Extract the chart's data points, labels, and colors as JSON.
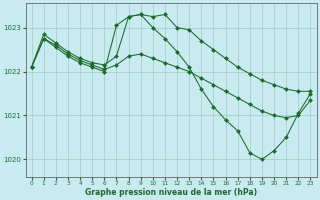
{
  "title": "Graphe pression niveau de la mer (hPa)",
  "background_color": "#c8eaf0",
  "grid_color": "#a0ccbb",
  "line_color": "#1a6b2a",
  "xlim": [
    -0.5,
    23.5
  ],
  "ylim": [
    1019.6,
    1023.55
  ],
  "yticks": [
    1020,
    1021,
    1022,
    1023
  ],
  "xticks": [
    0,
    1,
    2,
    3,
    4,
    5,
    6,
    7,
    8,
    9,
    10,
    11,
    12,
    13,
    14,
    15,
    16,
    17,
    18,
    19,
    20,
    21,
    22,
    23
  ],
  "series": [
    {
      "x": [
        0,
        1,
        2,
        3,
        4,
        5,
        6,
        7,
        8,
        9,
        10,
        11,
        12,
        13,
        14,
        15,
        16,
        17,
        18,
        19,
        20,
        21,
        22,
        23
      ],
      "y": [
        1022.1,
        1022.85,
        1022.65,
        1022.45,
        1022.3,
        1022.2,
        1022.15,
        1022.35,
        1023.25,
        1023.3,
        1023.25,
        1023.3,
        1023.0,
        1022.95,
        1022.7,
        1022.5,
        1022.3,
        1022.1,
        1021.95,
        1021.8,
        1021.7,
        1021.6,
        1021.55,
        1021.55
      ]
    },
    {
      "x": [
        0,
        1,
        2,
        3,
        4,
        5,
        6,
        7,
        8,
        9,
        10,
        11,
        12,
        13,
        14,
        15,
        16,
        17,
        18,
        19,
        20,
        21,
        22,
        23
      ],
      "y": [
        1022.1,
        1022.75,
        1022.6,
        1022.4,
        1022.25,
        1022.15,
        1022.05,
        1022.15,
        1022.35,
        1022.4,
        1022.3,
        1022.2,
        1022.1,
        1022.0,
        1021.85,
        1021.7,
        1021.55,
        1021.4,
        1021.25,
        1021.1,
        1021.0,
        1020.95,
        1021.0,
        1021.35
      ]
    },
    {
      "x": [
        0,
        1,
        2,
        3,
        4,
        5,
        6,
        7,
        8,
        9,
        10,
        11,
        12,
        13,
        14,
        15,
        16,
        17,
        18,
        19,
        20,
        21,
        22,
        23
      ],
      "y": [
        1022.1,
        1022.75,
        1022.55,
        1022.35,
        1022.2,
        1022.1,
        1022.0,
        1023.05,
        1023.25,
        1023.3,
        1023.0,
        1022.75,
        1022.45,
        1022.1,
        1021.6,
        1021.2,
        1020.9,
        1020.65,
        1020.15,
        1020.0,
        1020.2,
        1020.5,
        1021.05,
        1021.5
      ]
    }
  ]
}
